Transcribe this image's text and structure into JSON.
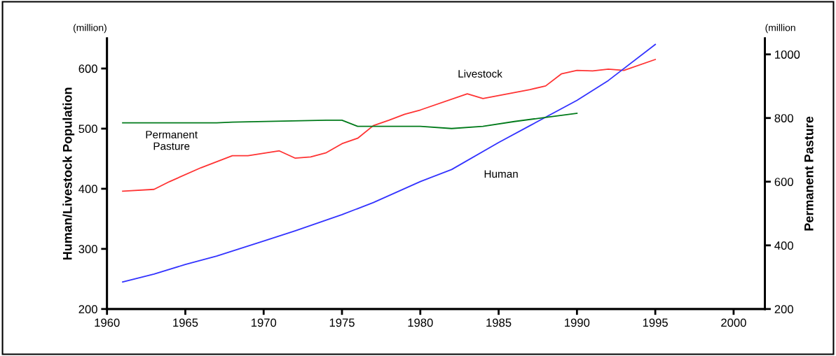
{
  "chart_data": {
    "type": "line",
    "ylabel": "Human/Livestock Population",
    "y2label": "Permanent Pasture",
    "annotations": [
      "(million)",
      "(million"
    ],
    "xlim": [
      1960,
      2002
    ],
    "xticks": [
      1960,
      1965,
      1970,
      1975,
      1980,
      1985,
      1990,
      1995,
      2000
    ],
    "ylim": [
      200,
      650
    ],
    "yticks": [
      200,
      300,
      400,
      500,
      600
    ],
    "y2lim": [
      200,
      1050
    ],
    "y2ticks": [
      200,
      400,
      600,
      800,
      1000
    ],
    "grid": false,
    "legend": false,
    "marker": "none",
    "line_style": "solid",
    "series": [
      {
        "name": "Livestock",
        "color": "#ff3333",
        "x": [
          1961,
          1963,
          1964,
          1966,
          1968,
          1969,
          1971,
          1972,
          1973,
          1974,
          1975,
          1976,
          1977,
          1978,
          1979,
          1980,
          1983,
          1984,
          1985,
          1987,
          1988,
          1989,
          1990,
          1991,
          1992,
          1993,
          1995
        ],
        "values": [
          396,
          399,
          412,
          435,
          455,
          455,
          463,
          451,
          453,
          460,
          475,
          484,
          505,
          514,
          524,
          531,
          558,
          550,
          555,
          565,
          571,
          591,
          597,
          596,
          599,
          597,
          615
        ]
      },
      {
        "name": "Human",
        "color": "#3333ff",
        "x": [
          1961,
          1963,
          1965,
          1967,
          1970,
          1972,
          1975,
          1977,
          1980,
          1982,
          1985,
          1987,
          1990,
          1992,
          1995
        ],
        "values": [
          245,
          258,
          274,
          288,
          313,
          330,
          357,
          377,
          412,
          432,
          477,
          505,
          547,
          580,
          640
        ]
      },
      {
        "name": "Permanent\nPasture",
        "color": "#007a1a",
        "axis": "y2",
        "x": [
          1961,
          1967,
          1968,
          1974,
          1975,
          1976,
          1978,
          1980,
          1982,
          1984,
          1986,
          1988,
          1990
        ],
        "values": [
          785,
          785,
          787,
          793,
          793,
          774,
          774,
          774,
          767,
          774,
          789,
          802,
          815
        ]
      }
    ]
  }
}
